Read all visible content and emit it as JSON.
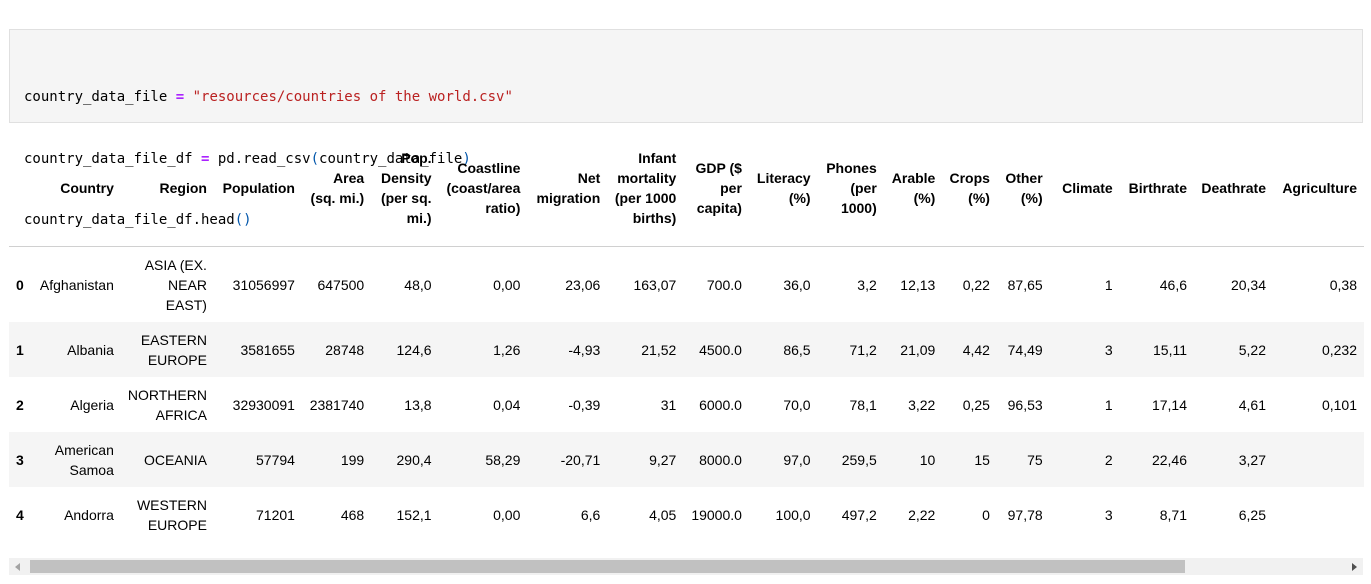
{
  "code_cell": {
    "line1": {
      "var": "country_data_file ",
      "op": "=",
      "str": "\"resources/countries of the world.csv\""
    },
    "line2": {
      "var": "country_data_file_df ",
      "op": "=",
      "call": " pd.read_csv",
      "open": "(",
      "arg": "country_data_file",
      "close": ")"
    },
    "line3": {
      "call": "country_data_file_df.head",
      "parens": "()"
    }
  },
  "table": {
    "columns": [
      "",
      "Country",
      "Region",
      "Population",
      "Area (sq. mi.)",
      "Pop. Density (per sq. mi.)",
      "Coastline (coast/area ratio)",
      "Net migration",
      "Infant mortality (per 1000 births)",
      "GDP ($ per capita)",
      "Literacy (%)",
      "Phones (per 1000)",
      "Arable (%)",
      "Crops (%)",
      "Other (%)",
      "Climate",
      "Birthrate",
      "Deathrate",
      "Agriculture"
    ],
    "rows": [
      [
        "0",
        "Afghanistan",
        "ASIA (EX. NEAR EAST)",
        "31056997",
        "647500",
        "48,0",
        "0,00",
        "23,06",
        "163,07",
        "700.0",
        "36,0",
        "3,2",
        "12,13",
        "0,22",
        "87,65",
        "1",
        "46,6",
        "20,34",
        "0,38"
      ],
      [
        "1",
        "Albania",
        "EASTERN EUROPE",
        "3581655",
        "28748",
        "124,6",
        "1,26",
        "-4,93",
        "21,52",
        "4500.0",
        "86,5",
        "71,2",
        "21,09",
        "4,42",
        "74,49",
        "3",
        "15,11",
        "5,22",
        "0,232"
      ],
      [
        "2",
        "Algeria",
        "NORTHERN AFRICA",
        "32930091",
        "2381740",
        "13,8",
        "0,04",
        "-0,39",
        "31",
        "6000.0",
        "70,0",
        "78,1",
        "3,22",
        "0,25",
        "96,53",
        "1",
        "17,14",
        "4,61",
        "0,101"
      ],
      [
        "3",
        "American Samoa",
        "OCEANIA",
        "57794",
        "199",
        "290,4",
        "58,29",
        "-20,71",
        "9,27",
        "8000.0",
        "97,0",
        "259,5",
        "10",
        "15",
        "75",
        "2",
        "22,46",
        "3,27",
        ""
      ],
      [
        "4",
        "Andorra",
        "WESTERN EUROPE",
        "71201",
        "468",
        "152,1",
        "0,00",
        "6,6",
        "4,05",
        "19000.0",
        "100,0",
        "497,2",
        "2,22",
        "0",
        "97,78",
        "3",
        "8,71",
        "6,25",
        ""
      ]
    ]
  },
  "scrollbar": {
    "position": 0.0
  }
}
